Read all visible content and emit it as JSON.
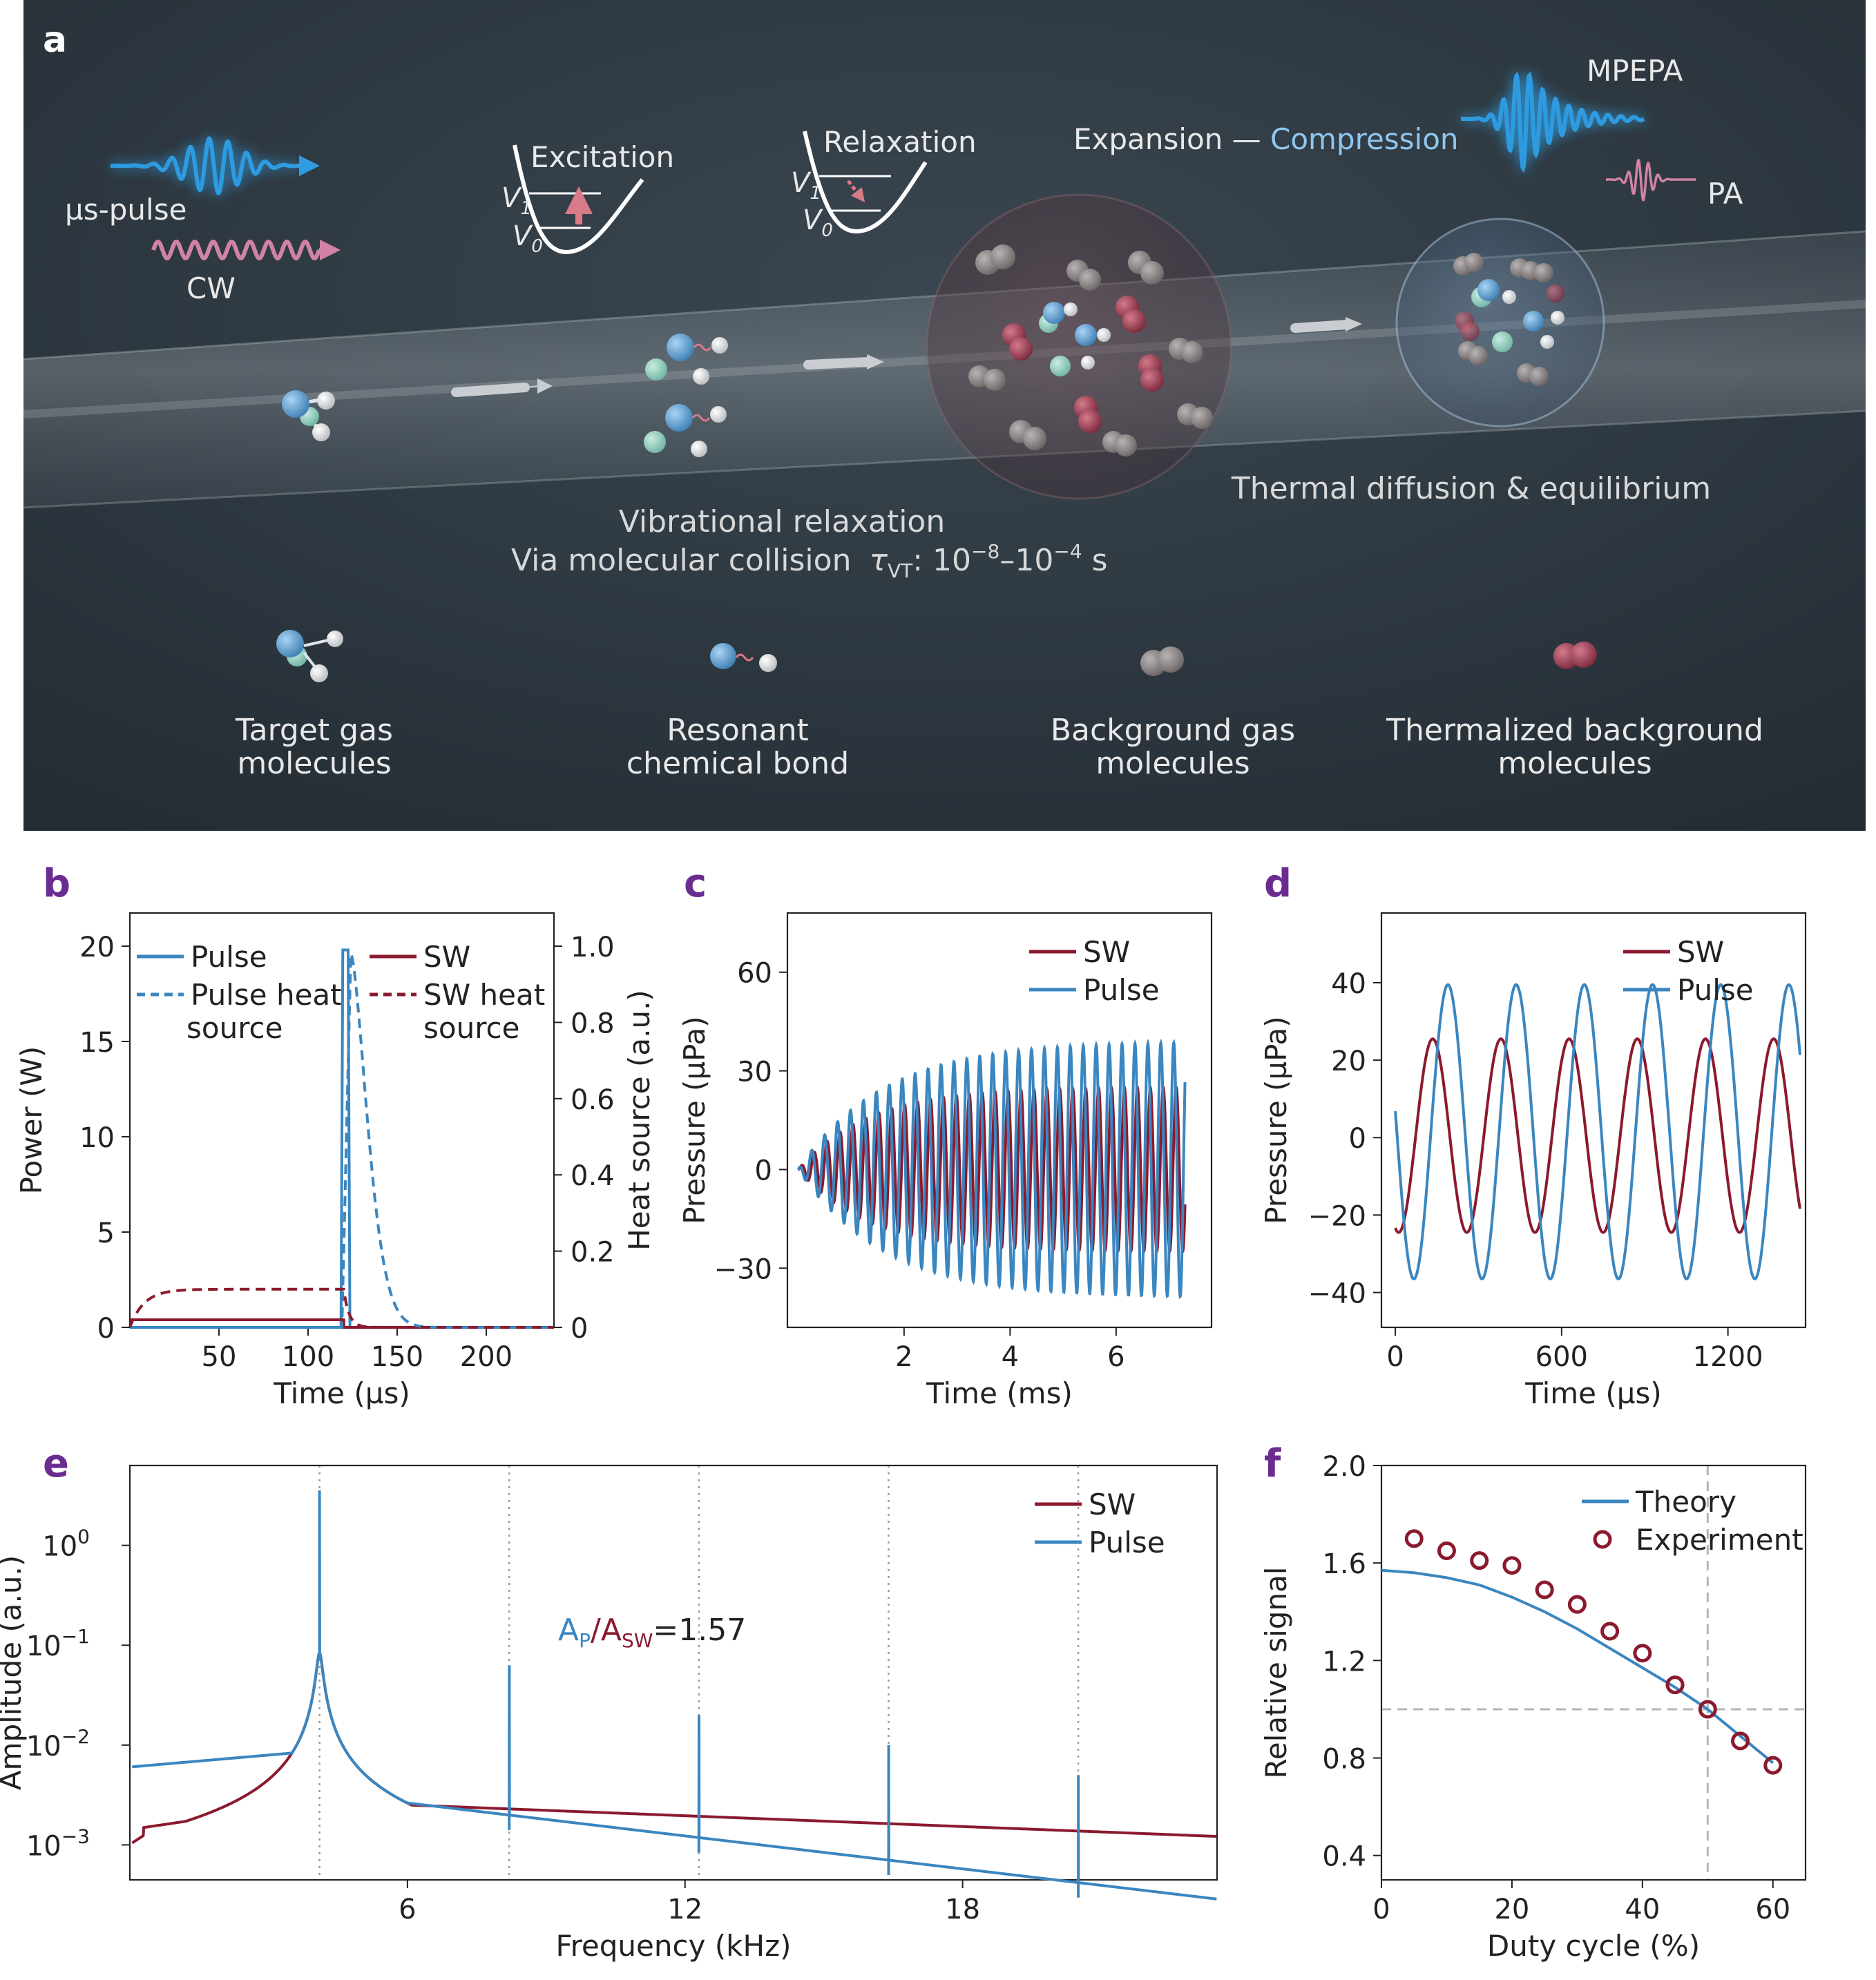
{
  "panel_a": {
    "label": "a",
    "us_pulse": "µs-pulse",
    "cw": "CW",
    "excitation": "Excitation",
    "relaxation": "Relaxation",
    "v1": "V",
    "v1_sub": "1",
    "v0": "V",
    "v0_sub": "0",
    "expansion": "Expansion",
    "dash": "—",
    "compression": "Compression",
    "mpepa": "MPEPA",
    "pa": "PA",
    "vib_line1": "Vibrational relaxation",
    "vib_line2_pre": "Via molecular collision",
    "tau": "τ",
    "tau_sub": "VT",
    "tau_val": ": 10",
    "exp1": "−8",
    "range_dash": "–10",
    "exp2": "−4",
    "unit_s": " s",
    "thermal": "Thermal diffusion & equilibrium",
    "legend_target_1": "Target gas",
    "legend_target_2": "molecules",
    "legend_bond_1": "Resonant",
    "legend_bond_2": "chemical bond",
    "legend_bg_1": "Background gas",
    "legend_bg_2": "molecules",
    "legend_therm_1": "Thermalized background",
    "legend_therm_2": "molecules",
    "colors": {
      "bg": "#2a343c",
      "pulse": "#2f9be0",
      "cw": "#d183a6",
      "text": "#e8e8e8",
      "compression": "#8fc6ee"
    }
  },
  "colors": {
    "sw": "#8b1a2e",
    "pulse": "#3a86c0",
    "grid_dotted": "#9a9a9a",
    "ref_dashed": "#b5b5b5",
    "panel_label": "#6a2c91"
  },
  "chart_data": [
    {
      "id": "b",
      "label": "b",
      "type": "line",
      "xlabel": "Time (µs)",
      "ylabel": "Power (W)",
      "ylabel_right": "Heat source (a.u.)",
      "xlim": [
        0,
        238
      ],
      "ylim": [
        0,
        20
      ],
      "ylim_right": [
        0,
        1.0
      ],
      "xticks": [
        50,
        100,
        150,
        200
      ],
      "yticks": [
        0,
        5,
        10,
        15,
        20
      ],
      "yticks_right": [
        0,
        0.2,
        0.4,
        0.6,
        0.8,
        1.0
      ],
      "xtick_labels": [
        "50",
        "100",
        "150",
        "200"
      ],
      "ytick_labels": [
        "0",
        "5",
        "10",
        "15",
        "20"
      ],
      "ytick_labels_right": [
        "0",
        "0.2",
        "0.4",
        "0.6",
        "0.8",
        "1.0"
      ],
      "legend_left": [
        "Pulse",
        "Pulse heat",
        "source"
      ],
      "legend_right": [
        "SW",
        "SW heat",
        "source"
      ],
      "series": [
        {
          "name": "Pulse",
          "style": "solid",
          "color": "pulse",
          "axis": "left",
          "points": [
            [
              0,
              0
            ],
            [
              118.5,
              0
            ],
            [
              119.5,
              19.8
            ],
            [
              122.5,
              19.8
            ],
            [
              123.5,
              0
            ],
            [
              238,
              0
            ]
          ]
        },
        {
          "name": "SW",
          "style": "solid",
          "color": "sw",
          "axis": "left",
          "points": [
            [
              0,
              0.4
            ],
            [
              120,
              0.4
            ],
            [
              120.2,
              0
            ],
            [
              238,
              0
            ]
          ]
        },
        {
          "name": "Pulse heat source",
          "style": "dashed",
          "color": "pulse",
          "axis": "right",
          "model": "pulse_heat",
          "t_start": 119,
          "t_peak": 124,
          "tau": 13
        },
        {
          "name": "SW heat source",
          "style": "dashed",
          "color": "sw",
          "axis": "right",
          "model": "sw_heat",
          "t_end": 120,
          "level": 0.1,
          "tau_rise": 8,
          "tau_fall": 3
        }
      ]
    },
    {
      "id": "c",
      "label": "c",
      "type": "line",
      "xlabel": "Time (ms)",
      "ylabel": "Pressure (µPa)",
      "xlim": [
        -0.2,
        7.8
      ],
      "ylim": [
        -48,
        78
      ],
      "xticks": [
        2,
        4,
        6
      ],
      "yticks": [
        -30,
        0,
        30,
        60
      ],
      "xtick_labels": [
        "2",
        "4",
        "6"
      ],
      "ytick_labels": [
        "−30",
        "0",
        "30",
        "60"
      ],
      "legend": [
        "SW",
        "Pulse"
      ],
      "series": [
        {
          "name": "SW",
          "color": "sw",
          "model": "growing_sine",
          "freq_khz": 4.1,
          "amp": 25,
          "tau_ms": 1.3,
          "t_end": 7.3,
          "phase": 0.0
        },
        {
          "name": "Pulse",
          "color": "pulse",
          "model": "growing_sine",
          "freq_khz": 4.1,
          "amp": 39,
          "tau_ms": 1.6,
          "t_end": 7.3,
          "phase": 1.2
        }
      ]
    },
    {
      "id": "d",
      "label": "d",
      "type": "line",
      "xlabel": "Time (µs)",
      "ylabel": "Pressure (µPa)",
      "xlim": [
        -50,
        1480
      ],
      "ylim": [
        -49,
        58
      ],
      "xticks": [
        0,
        600,
        1200
      ],
      "yticks": [
        -40,
        -20,
        0,
        20,
        40
      ],
      "xtick_labels": [
        "0",
        "600",
        "1200"
      ],
      "ytick_labels": [
        "−40",
        "−20",
        "0",
        "20",
        "40"
      ],
      "legend": [
        "SW",
        "Pulse"
      ],
      "series": [
        {
          "name": "SW",
          "color": "sw",
          "model": "sine",
          "period_us": 246,
          "amp": 25,
          "offset": 0.5,
          "peak_at": 135,
          "x_range": [
            0,
            1460
          ]
        },
        {
          "name": "Pulse",
          "color": "pulse",
          "model": "sine",
          "period_us": 246,
          "amp": 38,
          "offset": 1.5,
          "peak_at": 190,
          "x_range": [
            0,
            1460
          ]
        }
      ]
    },
    {
      "id": "e",
      "label": "e",
      "type": "line",
      "yscale": "log",
      "xlabel": "Frequency (kHz)",
      "ylabel": "Amplitude (a.u.)",
      "xlim": [
        0,
        23.5
      ],
      "ylim_log10": [
        -3.35,
        0.8
      ],
      "xticks": [
        6,
        12,
        18
      ],
      "xtick_labels": [
        "6",
        "12",
        "18"
      ],
      "yticks_log10": [
        -3,
        -2,
        -1,
        0
      ],
      "ytick_base": [
        "10",
        "10",
        "10",
        "10"
      ],
      "ytick_exp": [
        "−3",
        "−2",
        "−1",
        "0"
      ],
      "guides_khz": [
        4.1,
        8.2,
        12.3,
        16.4,
        20.5
      ],
      "annotation": {
        "ap": "A",
        "ap_sub": "P",
        "slash": "/",
        "asw": "A",
        "asw_sub": "SW",
        "eq": "=1.57"
      },
      "legend": [
        "SW",
        "Pulse"
      ],
      "series": [
        {
          "name": "SW",
          "color": "sw",
          "model": "sw_spectrum",
          "peak_khz": 4.1,
          "peak_log10": -1.08
        },
        {
          "name": "Pulse",
          "color": "pulse",
          "model": "pulse_spectrum",
          "peak_khz": 4.1,
          "peak_log10": 0.55,
          "harmonics": [
            [
              8.2,
              -1.2
            ],
            [
              12.3,
              -1.7
            ],
            [
              16.4,
              -2.0
            ],
            [
              20.5,
              -2.3
            ]
          ]
        }
      ]
    },
    {
      "id": "f",
      "label": "f",
      "type": "scatter",
      "xlabel": "Duty cycle (%)",
      "ylabel": "Relative signal",
      "xlim": [
        0,
        65
      ],
      "ylim": [
        0.3,
        2.0
      ],
      "xticks": [
        0,
        20,
        40,
        60
      ],
      "yticks": [
        0.4,
        0.8,
        1.2,
        1.6,
        2.0
      ],
      "xtick_labels": [
        "0",
        "20",
        "40",
        "60"
      ],
      "ytick_labels": [
        "0.4",
        "0.8",
        "1.2",
        "1.6",
        "2.0"
      ],
      "ref_lines": {
        "x": 50,
        "y": 1.0
      },
      "legend": [
        "Theory",
        "Experiment"
      ],
      "theory": {
        "name": "Theory",
        "color": "pulse",
        "points": [
          [
            0,
            1.57
          ],
          [
            5,
            1.56
          ],
          [
            10,
            1.54
          ],
          [
            15,
            1.51
          ],
          [
            20,
            1.46
          ],
          [
            25,
            1.4
          ],
          [
            30,
            1.33
          ],
          [
            35,
            1.25
          ],
          [
            40,
            1.17
          ],
          [
            45,
            1.09
          ],
          [
            50,
            1.0
          ],
          [
            55,
            0.89
          ],
          [
            60,
            0.78
          ]
        ]
      },
      "experiment": {
        "name": "Experiment",
        "color": "sw",
        "points": [
          [
            5,
            1.7
          ],
          [
            10,
            1.65
          ],
          [
            15,
            1.61
          ],
          [
            20,
            1.59
          ],
          [
            25,
            1.49
          ],
          [
            30,
            1.43
          ],
          [
            35,
            1.32
          ],
          [
            40,
            1.23
          ],
          [
            45,
            1.1
          ],
          [
            50,
            1.0
          ],
          [
            55,
            0.87
          ],
          [
            60,
            0.77
          ]
        ]
      }
    }
  ]
}
